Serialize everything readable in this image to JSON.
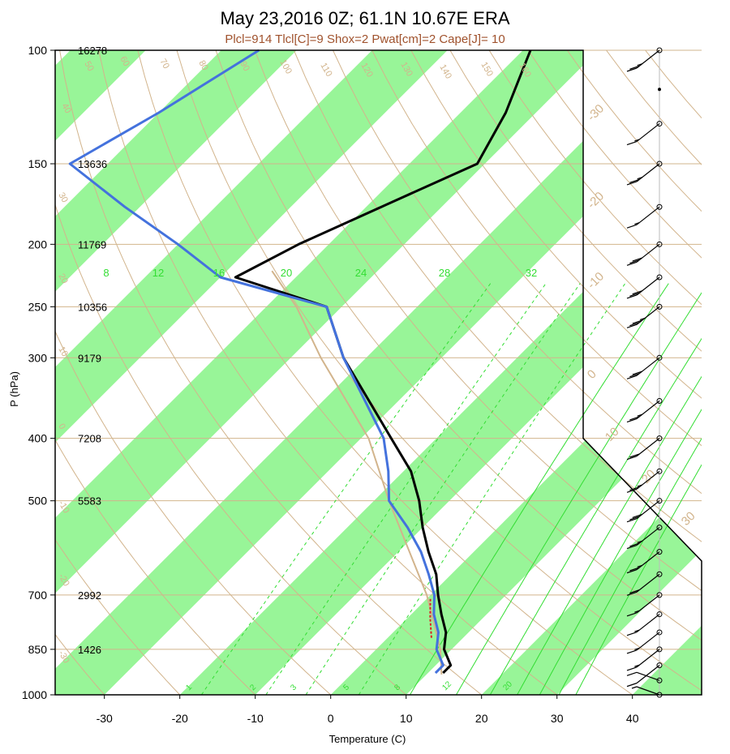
{
  "title": "May 23,2016 0Z; 61.1N 10.67E ERA",
  "subtitle": "Plcl=914 Tlcl[C]=9 Shox=2 Pwat[cm]=2 Cape[J]= 10",
  "chart_data": {
    "type": "line",
    "title": "May 23,2016 0Z; 61.1N 10.67E ERA",
    "subtitle": "Plcl=914 Tlcl[C]=9 Shox=2 Pwat[cm]=2 Cape[J]= 10",
    "xlabel": "Temperature (C)",
    "ylabel": "P (hPa)",
    "xlim": [
      -34,
      46
    ],
    "ylim": [
      1000,
      100
    ],
    "yscale": "log",
    "x_ticks": [
      -30,
      -20,
      -10,
      0,
      10,
      20,
      30,
      40
    ],
    "x_tick_labels": [
      "-30",
      "-20",
      "-10",
      "0",
      "10",
      "20",
      "30",
      "40"
    ],
    "p_levels": [
      100,
      150,
      200,
      250,
      300,
      400,
      500,
      700,
      850,
      1000
    ],
    "p_level_labels": [
      "100",
      "150",
      "200",
      "250",
      "300",
      "400",
      "500",
      "700",
      "850",
      "1000"
    ],
    "heights": [
      {
        "p": 100,
        "label": "16278"
      },
      {
        "p": 150,
        "label": "13636"
      },
      {
        "p": 200,
        "label": "11769"
      },
      {
        "p": 250,
        "label": "10356"
      },
      {
        "p": 300,
        "label": "9179"
      },
      {
        "p": 400,
        "label": "7208"
      },
      {
        "p": 500,
        "label": "5583"
      },
      {
        "p": 700,
        "label": "2992"
      },
      {
        "p": 850,
        "label": "1426"
      }
    ],
    "skewed_temp_labels": [
      "-30",
      "-20",
      "-10",
      "0",
      "10",
      "20",
      "30"
    ],
    "dry_adiabat_labels": [
      "-30",
      "-20",
      "-10",
      "0",
      "10",
      "20",
      "30",
      "40",
      "50",
      "60",
      "70",
      "80",
      "90",
      "100",
      "110",
      "120",
      "130",
      "140",
      "150",
      "160"
    ],
    "mixing_ratio_labels_top": [
      "8",
      "12",
      "16",
      "20",
      "24",
      "28",
      "32"
    ],
    "mixing_ratio_labels_bottom": [
      "1",
      "2",
      "3",
      "5",
      "8",
      "12",
      "20"
    ],
    "series": [
      {
        "name": "temperature",
        "color": "#000000",
        "points": [
          {
            "p": 100,
            "t": -59
          },
          {
            "p": 125,
            "t": -54
          },
          {
            "p": 150,
            "t": -51
          },
          {
            "p": 175,
            "t": -58
          },
          {
            "p": 200,
            "t": -64
          },
          {
            "p": 225,
            "t": -68
          },
          {
            "p": 250,
            "t": -52
          },
          {
            "p": 300,
            "t": -43
          },
          {
            "p": 400,
            "t": -26
          },
          {
            "p": 450,
            "t": -19
          },
          {
            "p": 500,
            "t": -14
          },
          {
            "p": 550,
            "t": -10
          },
          {
            "p": 600,
            "t": -6
          },
          {
            "p": 650,
            "t": -2
          },
          {
            "p": 700,
            "t": 1
          },
          {
            "p": 750,
            "t": 4
          },
          {
            "p": 800,
            "t": 7
          },
          {
            "p": 850,
            "t": 9
          },
          {
            "p": 900,
            "t": 12
          },
          {
            "p": 925,
            "t": 12
          }
        ]
      },
      {
        "name": "dewpoint",
        "color": "#4472dd",
        "points": [
          {
            "p": 100,
            "t": -95
          },
          {
            "p": 125,
            "t": -100
          },
          {
            "p": 150,
            "t": -105
          },
          {
            "p": 175,
            "t": -92
          },
          {
            "p": 200,
            "t": -80
          },
          {
            "p": 225,
            "t": -70
          },
          {
            "p": 250,
            "t": -52
          },
          {
            "p": 300,
            "t": -43
          },
          {
            "p": 400,
            "t": -27
          },
          {
            "p": 450,
            "t": -22
          },
          {
            "p": 500,
            "t": -18
          },
          {
            "p": 550,
            "t": -12
          },
          {
            "p": 600,
            "t": -7
          },
          {
            "p": 650,
            "t": -3
          },
          {
            "p": 700,
            "t": 0.5
          },
          {
            "p": 750,
            "t": 3
          },
          {
            "p": 800,
            "t": 6
          },
          {
            "p": 850,
            "t": 8
          },
          {
            "p": 900,
            "t": 11
          },
          {
            "p": 925,
            "t": 11
          }
        ]
      },
      {
        "name": "parcel",
        "color": "#d2b48c",
        "points": [
          {
            "p": 930,
            "t": 12
          },
          {
            "p": 850,
            "t": 8.5
          },
          {
            "p": 700,
            "t": -0.5
          },
          {
            "p": 500,
            "t": -18
          },
          {
            "p": 400,
            "t": -29
          },
          {
            "p": 300,
            "t": -46
          },
          {
            "p": 250,
            "t": -56
          },
          {
            "p": 220,
            "t": -64
          }
        ]
      }
    ],
    "wind_profile": [
      {
        "p": 100,
        "speed_kt": 25,
        "dir_deg": 250
      },
      {
        "p": 115,
        "speed_kt": 0,
        "dir_deg": 0
      },
      {
        "p": 130,
        "speed_kt": 15,
        "dir_deg": 240
      },
      {
        "p": 150,
        "speed_kt": 25,
        "dir_deg": 250
      },
      {
        "p": 175,
        "speed_kt": 15,
        "dir_deg": 240
      },
      {
        "p": 200,
        "speed_kt": 30,
        "dir_deg": 240
      },
      {
        "p": 225,
        "speed_kt": 30,
        "dir_deg": 240
      },
      {
        "p": 250,
        "speed_kt": 35,
        "dir_deg": 240
      },
      {
        "p": 300,
        "speed_kt": 30,
        "dir_deg": 240
      },
      {
        "p": 350,
        "speed_kt": 25,
        "dir_deg": 240
      },
      {
        "p": 400,
        "speed_kt": 20,
        "dir_deg": 240
      },
      {
        "p": 450,
        "speed_kt": 25,
        "dir_deg": 240
      },
      {
        "p": 500,
        "speed_kt": 30,
        "dir_deg": 240
      },
      {
        "p": 550,
        "speed_kt": 25,
        "dir_deg": 240
      },
      {
        "p": 600,
        "speed_kt": 25,
        "dir_deg": 240
      },
      {
        "p": 650,
        "speed_kt": 20,
        "dir_deg": 240
      },
      {
        "p": 700,
        "speed_kt": 15,
        "dir_deg": 240
      },
      {
        "p": 750,
        "speed_kt": 15,
        "dir_deg": 240
      },
      {
        "p": 800,
        "speed_kt": 15,
        "dir_deg": 240
      },
      {
        "p": 850,
        "speed_kt": 15,
        "dir_deg": 240
      },
      {
        "p": 900,
        "speed_kt": 10,
        "dir_deg": 240
      },
      {
        "p": 950,
        "speed_kt": 10,
        "dir_deg": 120
      },
      {
        "p": 1000,
        "speed_kt": 5,
        "dir_deg": 120
      }
    ],
    "colors": {
      "band": "#98f598",
      "isotherm": "#d2b48c",
      "mixing_ratio": "#33dd33",
      "temperature": "#000000",
      "dewpoint": "#4472dd",
      "parcel": "#d2b48c",
      "moist_segment": "#dd2222"
    },
    "grid": true
  }
}
